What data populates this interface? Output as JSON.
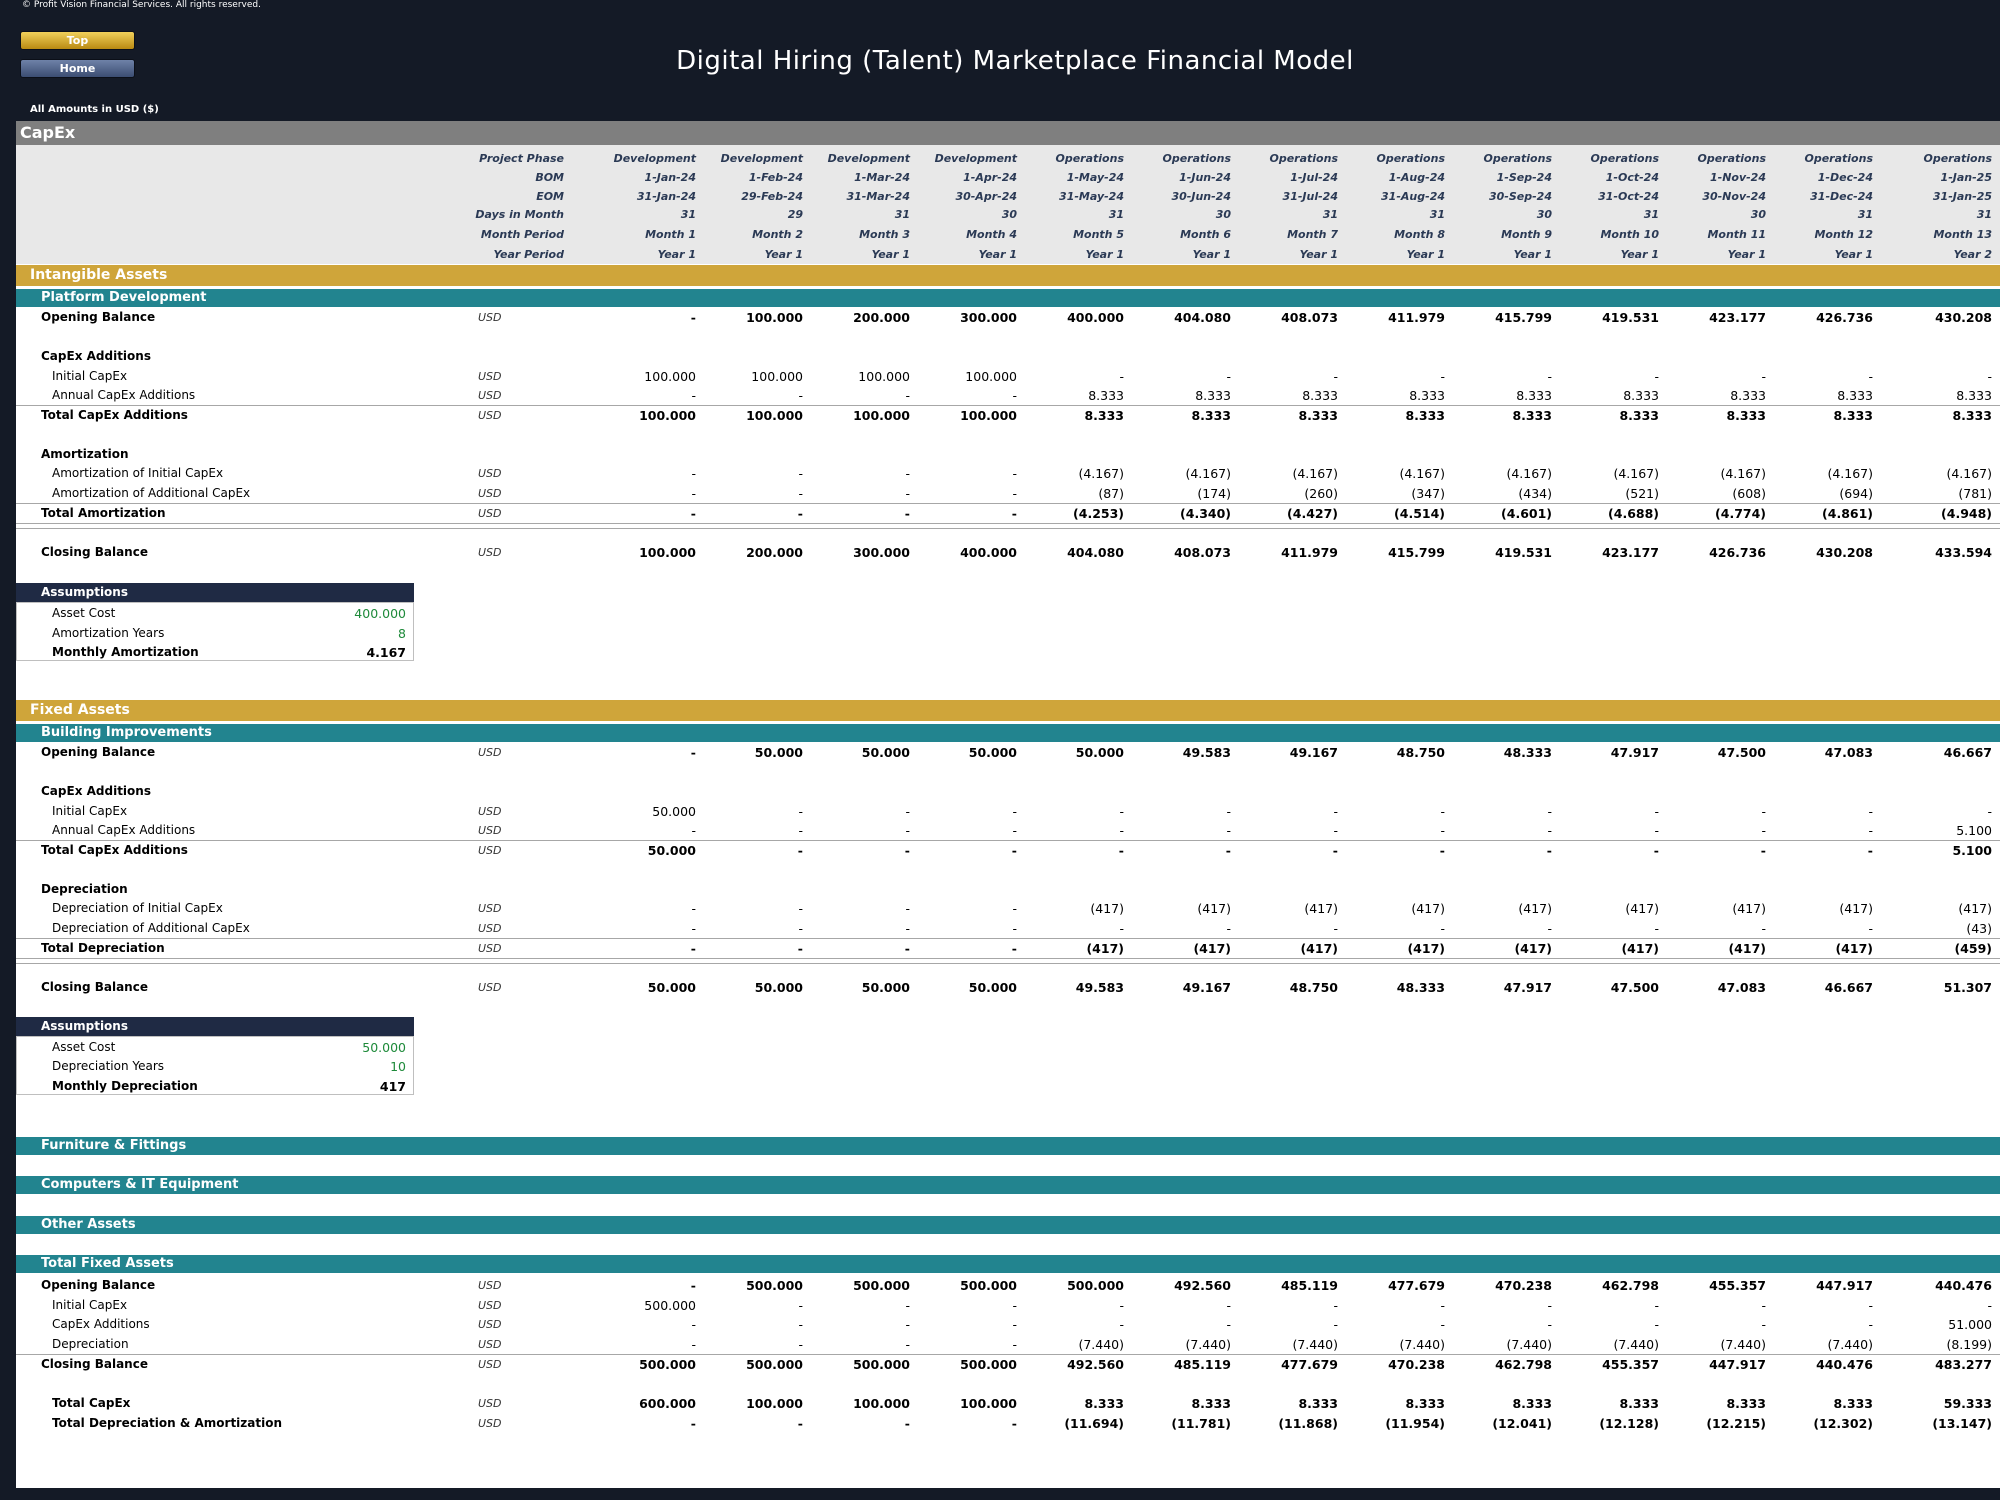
{
  "header": {
    "copyright": "© Profit Vision Financial Services. All rights reserved.",
    "title": "Digital Hiring (Talent) Marketplace Financial Model",
    "top_button": "Top",
    "home_button": "Home",
    "amounts_note": "All Amounts in  USD ($)"
  },
  "sheet_title": "CapEx",
  "timeline": {
    "labels": [
      "Project Phase",
      "BOM",
      "EOM",
      "Days in Month",
      "Month Period",
      "Year Period"
    ],
    "phase": [
      "Development",
      "Development",
      "Development",
      "Development",
      "Operations",
      "Operations",
      "Operations",
      "Operations",
      "Operations",
      "Operations",
      "Operations",
      "Operations",
      "Operations"
    ],
    "bom": [
      "1-Jan-24",
      "1-Feb-24",
      "1-Mar-24",
      "1-Apr-24",
      "1-May-24",
      "1-Jun-24",
      "1-Jul-24",
      "1-Aug-24",
      "1-Sep-24",
      "1-Oct-24",
      "1-Nov-24",
      "1-Dec-24",
      "1-Jan-25"
    ],
    "eom": [
      "31-Jan-24",
      "29-Feb-24",
      "31-Mar-24",
      "30-Apr-24",
      "31-May-24",
      "30-Jun-24",
      "31-Jul-24",
      "31-Aug-24",
      "30-Sep-24",
      "31-Oct-24",
      "30-Nov-24",
      "31-Dec-24",
      "31-Jan-25"
    ],
    "days": [
      "31",
      "29",
      "31",
      "30",
      "31",
      "30",
      "31",
      "31",
      "30",
      "31",
      "30",
      "31",
      "31"
    ],
    "month": [
      "Month 1",
      "Month 2",
      "Month 3",
      "Month 4",
      "Month 5",
      "Month 6",
      "Month 7",
      "Month 8",
      "Month 9",
      "Month 10",
      "Month 11",
      "Month 12",
      "Month 13"
    ],
    "year": [
      "Year 1",
      "Year 1",
      "Year 1",
      "Year 1",
      "Year 1",
      "Year 1",
      "Year 1",
      "Year 1",
      "Year 1",
      "Year 1",
      "Year 1",
      "Year 1",
      "Year 2"
    ]
  },
  "sections": {
    "intangible": "Intangible Assets",
    "platform": "Platform Development",
    "fixed": "Fixed Assets",
    "building": "Building Improvements",
    "furniture": "Furniture & Fittings",
    "computers": "Computers & IT Equipment",
    "other": "Other Assets",
    "total_fixed": "Total Fixed Assets"
  },
  "rows": [
    {
      "label": "Opening Balance",
      "bold": true,
      "indent": 0,
      "unit": "USD",
      "values": [
        "-",
        "100.000",
        "200.000",
        "300.000",
        "400.000",
        "404.080",
        "408.073",
        "411.979",
        "415.799",
        "419.531",
        "423.177",
        "426.736",
        "430.208"
      ]
    },
    {
      "label": "CapEx Additions",
      "bold": true,
      "indent": 0,
      "unit": "",
      "values": []
    },
    {
      "label": "Initial CapEx",
      "bold": false,
      "indent": 1,
      "unit": "USD",
      "values": [
        "100.000",
        "100.000",
        "100.000",
        "100.000",
        "-",
        "-",
        "-",
        "-",
        "-",
        "-",
        "-",
        "-",
        "-"
      ]
    },
    {
      "label": "Annual CapEx Additions",
      "bold": false,
      "indent": 1,
      "unit": "USD",
      "values": [
        "-",
        "-",
        "-",
        "-",
        "8.333",
        "8.333",
        "8.333",
        "8.333",
        "8.333",
        "8.333",
        "8.333",
        "8.333",
        "8.333"
      ]
    },
    {
      "label": "Total CapEx Additions",
      "bold": true,
      "indent": 0,
      "unit": "USD",
      "values": [
        "100.000",
        "100.000",
        "100.000",
        "100.000",
        "8.333",
        "8.333",
        "8.333",
        "8.333",
        "8.333",
        "8.333",
        "8.333",
        "8.333",
        "8.333"
      ]
    },
    {
      "label": "Amortization",
      "bold": true,
      "indent": 0,
      "unit": "",
      "values": []
    },
    {
      "label": "Amortization of Initial CapEx",
      "bold": false,
      "indent": 1,
      "unit": "USD",
      "values": [
        "-",
        "-",
        "-",
        "-",
        "(4.167)",
        "(4.167)",
        "(4.167)",
        "(4.167)",
        "(4.167)",
        "(4.167)",
        "(4.167)",
        "(4.167)",
        "(4.167)"
      ]
    },
    {
      "label": "Amortization of Additional CapEx",
      "bold": false,
      "indent": 1,
      "unit": "USD",
      "values": [
        "-",
        "-",
        "-",
        "-",
        "(87)",
        "(174)",
        "(260)",
        "(347)",
        "(434)",
        "(521)",
        "(608)",
        "(694)",
        "(781)"
      ]
    },
    {
      "label": "Total Amortization",
      "bold": true,
      "indent": 0,
      "unit": "USD",
      "values": [
        "-",
        "-",
        "-",
        "-",
        "(4.253)",
        "(4.340)",
        "(4.427)",
        "(4.514)",
        "(4.601)",
        "(4.688)",
        "(4.774)",
        "(4.861)",
        "(4.948)"
      ]
    },
    {
      "label": "Closing Balance",
      "bold": true,
      "indent": 0,
      "unit": "USD",
      "values": [
        "100.000",
        "200.000",
        "300.000",
        "400.000",
        "404.080",
        "408.073",
        "411.979",
        "415.799",
        "419.531",
        "423.177",
        "426.736",
        "430.208",
        "433.594"
      ]
    },
    {
      "label": "Opening Balance",
      "bold": true,
      "indent": 0,
      "unit": "USD",
      "values": [
        "-",
        "50.000",
        "50.000",
        "50.000",
        "50.000",
        "49.583",
        "49.167",
        "48.750",
        "48.333",
        "47.917",
        "47.500",
        "47.083",
        "46.667"
      ]
    },
    {
      "label": "CapEx Additions",
      "bold": true,
      "indent": 0,
      "unit": "",
      "values": []
    },
    {
      "label": "Initial CapEx",
      "bold": false,
      "indent": 1,
      "unit": "USD",
      "values": [
        "50.000",
        "-",
        "-",
        "-",
        "-",
        "-",
        "-",
        "-",
        "-",
        "-",
        "-",
        "-",
        "-"
      ]
    },
    {
      "label": "Annual CapEx Additions",
      "bold": false,
      "indent": 1,
      "unit": "USD",
      "values": [
        "-",
        "-",
        "-",
        "-",
        "-",
        "-",
        "-",
        "-",
        "-",
        "-",
        "-",
        "-",
        "5.100"
      ]
    },
    {
      "label": "Total CapEx Additions",
      "bold": true,
      "indent": 0,
      "unit": "USD",
      "values": [
        "50.000",
        "-",
        "-",
        "-",
        "-",
        "-",
        "-",
        "-",
        "-",
        "-",
        "-",
        "-",
        "5.100"
      ]
    },
    {
      "label": "Depreciation",
      "bold": true,
      "indent": 0,
      "unit": "",
      "values": []
    },
    {
      "label": "Depreciation of Initial CapEx",
      "bold": false,
      "indent": 1,
      "unit": "USD",
      "values": [
        "-",
        "-",
        "-",
        "-",
        "(417)",
        "(417)",
        "(417)",
        "(417)",
        "(417)",
        "(417)",
        "(417)",
        "(417)",
        "(417)"
      ]
    },
    {
      "label": "Depreciation of Additional CapEx",
      "bold": false,
      "indent": 1,
      "unit": "USD",
      "values": [
        "-",
        "-",
        "-",
        "-",
        "-",
        "-",
        "-",
        "-",
        "-",
        "-",
        "-",
        "-",
        "(43)"
      ]
    },
    {
      "label": "Total Depreciation",
      "bold": true,
      "indent": 0,
      "unit": "USD",
      "values": [
        "-",
        "-",
        "-",
        "-",
        "(417)",
        "(417)",
        "(417)",
        "(417)",
        "(417)",
        "(417)",
        "(417)",
        "(417)",
        "(459)"
      ]
    },
    {
      "label": "Closing Balance",
      "bold": true,
      "indent": 0,
      "unit": "USD",
      "values": [
        "50.000",
        "50.000",
        "50.000",
        "50.000",
        "49.583",
        "49.167",
        "48.750",
        "48.333",
        "47.917",
        "47.500",
        "47.083",
        "46.667",
        "51.307"
      ]
    },
    {
      "label": "Opening Balance",
      "bold": true,
      "indent": 0,
      "unit": "USD",
      "values": [
        "-",
        "500.000",
        "500.000",
        "500.000",
        "500.000",
        "492.560",
        "485.119",
        "477.679",
        "470.238",
        "462.798",
        "455.357",
        "447.917",
        "440.476"
      ]
    },
    {
      "label": "Initial CapEx",
      "bold": false,
      "indent": 1,
      "unit": "USD",
      "values": [
        "500.000",
        "-",
        "-",
        "-",
        "-",
        "-",
        "-",
        "-",
        "-",
        "-",
        "-",
        "-",
        "-"
      ]
    },
    {
      "label": "CapEx Additions",
      "bold": false,
      "indent": 1,
      "unit": "USD",
      "values": [
        "-",
        "-",
        "-",
        "-",
        "-",
        "-",
        "-",
        "-",
        "-",
        "-",
        "-",
        "-",
        "51.000"
      ]
    },
    {
      "label": "Depreciation",
      "bold": false,
      "indent": 1,
      "unit": "USD",
      "values": [
        "-",
        "-",
        "-",
        "-",
        "(7.440)",
        "(7.440)",
        "(7.440)",
        "(7.440)",
        "(7.440)",
        "(7.440)",
        "(7.440)",
        "(7.440)",
        "(8.199)"
      ]
    },
    {
      "label": "Closing Balance",
      "bold": true,
      "indent": 0,
      "unit": "USD",
      "values": [
        "500.000",
        "500.000",
        "500.000",
        "500.000",
        "492.560",
        "485.119",
        "477.679",
        "470.238",
        "462.798",
        "455.357",
        "447.917",
        "440.476",
        "483.277"
      ]
    },
    {
      "label": "Total CapEx",
      "bold": true,
      "indent": 1,
      "unit": "USD",
      "values": [
        "600.000",
        "100.000",
        "100.000",
        "100.000",
        "8.333",
        "8.333",
        "8.333",
        "8.333",
        "8.333",
        "8.333",
        "8.333",
        "8.333",
        "59.333"
      ]
    },
    {
      "label": "Total Depreciation & Amortization",
      "bold": true,
      "indent": 1,
      "unit": "USD",
      "values": [
        "-",
        "-",
        "-",
        "-",
        "(11.694)",
        "(11.781)",
        "(11.868)",
        "(11.954)",
        "(12.041)",
        "(12.128)",
        "(12.215)",
        "(12.302)",
        "(13.147)"
      ]
    }
  ],
  "assumptions": [
    {
      "title": "Assumptions",
      "items": [
        {
          "label": "Asset Cost",
          "value": "400.000",
          "input": true
        },
        {
          "label": "Amortization Years",
          "value": "8",
          "input": true
        },
        {
          "label": "Monthly Amortization",
          "value": "4.167",
          "input": false
        }
      ]
    },
    {
      "title": "Assumptions",
      "items": [
        {
          "label": "Asset Cost",
          "value": "50.000",
          "input": true
        },
        {
          "label": "Depreciation Years",
          "value": "10",
          "input": true
        },
        {
          "label": "Monthly Depreciation",
          "value": "417",
          "input": false
        }
      ]
    }
  ],
  "colors": {
    "header_bg": "#141a26",
    "gold": "#cfa53a",
    "teal": "#22848f",
    "input_green": "#1e8a3a"
  }
}
